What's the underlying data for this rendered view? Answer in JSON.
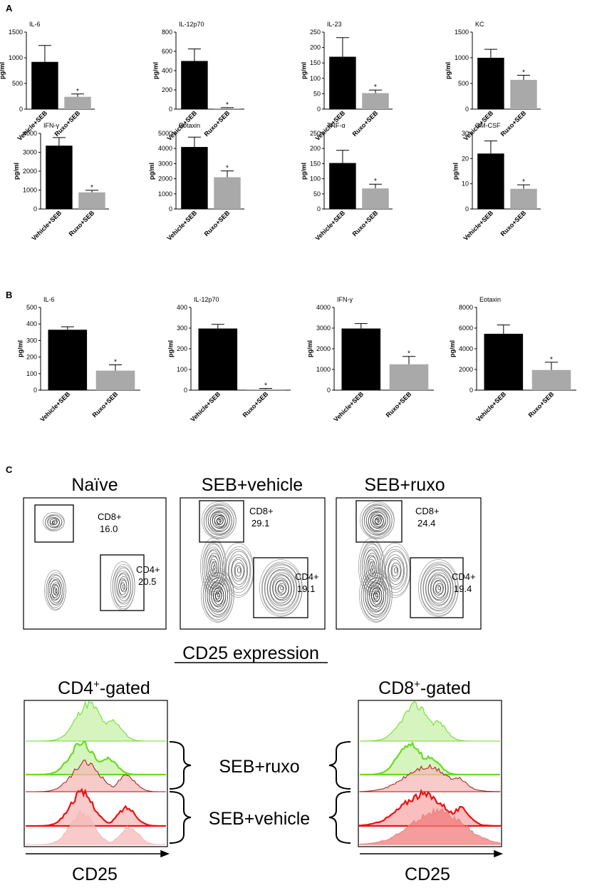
{
  "panel_labels": {
    "a": "A",
    "b": "B",
    "c": "C"
  },
  "y_unit": "pg/ml",
  "chart_data": [
    {
      "type": "bar",
      "panel": "A",
      "title": "IL-6",
      "categories": [
        "Vehicle+SEB",
        "Ruxo+SEB"
      ],
      "values": [
        920,
        240
      ],
      "errors": [
        320,
        55
      ],
      "ylim": [
        0,
        1500
      ],
      "yticks": [
        0,
        500,
        1000,
        1500
      ],
      "ylabel": "pg/ml",
      "significant": [
        false,
        true
      ]
    },
    {
      "type": "bar",
      "panel": "A",
      "title": "IL-12p70",
      "categories": [
        "Vehicle+SEB",
        "Ruxo+SEB"
      ],
      "values": [
        500,
        8
      ],
      "errors": [
        125,
        8
      ],
      "ylim": [
        0,
        800
      ],
      "yticks": [
        0,
        200,
        400,
        600,
        800
      ],
      "ylabel": "pg/ml",
      "significant": [
        false,
        true
      ]
    },
    {
      "type": "bar",
      "panel": "A",
      "title": "IL-23",
      "categories": [
        "Vehicle+SEB",
        "Ruxo+SEB"
      ],
      "values": [
        170,
        52
      ],
      "errors": [
        62,
        10
      ],
      "ylim": [
        0,
        250
      ],
      "yticks": [
        0,
        50,
        100,
        150,
        200,
        250
      ],
      "ylabel": "pg/ml",
      "significant": [
        false,
        true
      ]
    },
    {
      "type": "bar",
      "panel": "A",
      "title": "KC",
      "categories": [
        "Vehicle+SEB",
        "Ruxo+SEB"
      ],
      "values": [
        1000,
        570
      ],
      "errors": [
        165,
        90
      ],
      "ylim": [
        0,
        1500
      ],
      "yticks": [
        0,
        500,
        1000,
        1500
      ],
      "ylabel": "pg/ml",
      "significant": [
        false,
        true
      ]
    },
    {
      "type": "bar",
      "panel": "A",
      "title": "IFN-γ",
      "categories": [
        "Vehicle+SEB",
        "Ruxo+SEB"
      ],
      "values": [
        3350,
        880
      ],
      "errors": [
        430,
        110
      ],
      "ylim": [
        0,
        4000
      ],
      "yticks": [
        0,
        1000,
        2000,
        3000,
        4000
      ],
      "ylabel": "pg/ml",
      "significant": [
        false,
        true
      ]
    },
    {
      "type": "bar",
      "panel": "A",
      "title": "Eotaxin",
      "categories": [
        "Vehicle+SEB",
        "Ruxo+SEB"
      ],
      "values": [
        4100,
        2100
      ],
      "errors": [
        650,
        420
      ],
      "ylim": [
        0,
        5000
      ],
      "yticks": [
        0,
        1000,
        2000,
        3000,
        4000,
        5000
      ],
      "ylabel": "pg/ml",
      "significant": [
        false,
        true
      ]
    },
    {
      "type": "bar",
      "panel": "A",
      "title": "TNF-α",
      "categories": [
        "Vehicle+SEB",
        "Ruxo+SEB"
      ],
      "values": [
        152,
        68
      ],
      "errors": [
        42,
        14
      ],
      "ylim": [
        0,
        250
      ],
      "yticks": [
        0,
        50,
        100,
        150,
        200,
        250
      ],
      "ylabel": "pg/ml",
      "significant": [
        false,
        true
      ]
    },
    {
      "type": "bar",
      "panel": "A",
      "title": "GM-CSF",
      "categories": [
        "Vehicle+SEB",
        "Ruxo+SEB"
      ],
      "values": [
        22,
        8
      ],
      "errors": [
        5,
        1.6
      ],
      "ylim": [
        0,
        30
      ],
      "yticks": [
        0,
        10,
        20,
        30
      ],
      "ylabel": "pg/ml",
      "significant": [
        false,
        true
      ]
    },
    {
      "type": "bar",
      "panel": "B",
      "title": "IL-6",
      "categories": [
        "Vehicle+SEB",
        "Ruxo+SEB"
      ],
      "values": [
        365,
        118
      ],
      "errors": [
        18,
        35
      ],
      "ylim": [
        0,
        500
      ],
      "yticks": [
        0,
        100,
        200,
        300,
        400,
        500
      ],
      "ylabel": "pg/ml",
      "significant": [
        false,
        true
      ]
    },
    {
      "type": "bar",
      "panel": "B",
      "title": "IL-12p70",
      "categories": [
        "Vehicle+SEB",
        "Ruxo+SEB"
      ],
      "values": [
        298,
        4
      ],
      "errors": [
        20,
        4
      ],
      "ylim": [
        0,
        400
      ],
      "yticks": [
        0,
        100,
        200,
        300,
        400
      ],
      "ylabel": "pg/ml",
      "significant": [
        false,
        true
      ]
    },
    {
      "type": "bar",
      "panel": "B",
      "title": "IFN-γ",
      "categories": [
        "Vehicle+SEB",
        "Ruxo+SEB"
      ],
      "values": [
        2980,
        1250
      ],
      "errors": [
        240,
        380
      ],
      "ylim": [
        0,
        4000
      ],
      "yticks": [
        0,
        1000,
        2000,
        3000,
        4000
      ],
      "ylabel": "pg/ml",
      "significant": [
        false,
        true
      ]
    },
    {
      "type": "bar",
      "panel": "B",
      "title": "Eotaxin",
      "categories": [
        "Vehicle+SEB",
        "Ruxo+SEB"
      ],
      "values": [
        5450,
        1950
      ],
      "errors": [
        850,
        750
      ],
      "ylim": [
        0,
        8000
      ],
      "yticks": [
        0,
        2000,
        4000,
        6000,
        8000
      ],
      "ylabel": "pg/ml",
      "significant": [
        false,
        true
      ]
    }
  ],
  "flow": {
    "conditions": [
      {
        "title": "Naïve",
        "cd8_label": "CD8+",
        "cd8_value": "16.0",
        "cd4_label": "CD4+",
        "cd4_value": "20.5"
      },
      {
        "title": "SEB+vehicle",
        "cd8_label": "CD8+",
        "cd8_value": "29.1",
        "cd4_label": "CD4+",
        "cd4_value": "19.1"
      },
      {
        "title": "SEB+ruxo",
        "cd8_label": "CD8+",
        "cd8_value": "24.4",
        "cd4_label": "CD4+",
        "cd4_value": "19.4"
      }
    ],
    "cd25_heading": "CD25 expression",
    "hist_left_title_main": "CD4",
    "hist_left_title_sup": "+",
    "hist_left_title_tail": "-gated",
    "hist_right_title_main": "CD8",
    "hist_right_title_sup": "+",
    "hist_right_title_tail": "-gated",
    "group_ruxo": "SEB+ruxo",
    "group_vehicle": "SEB+vehicle",
    "x_axis_label": "CD25",
    "colors": {
      "ruxo": "#66dd22",
      "ruxo_fill": "#c8f0a8",
      "vehicle": "#ee1111",
      "vehicle_fill": "#f6b8b8",
      "vehicle_dark": "#a01a1a"
    }
  }
}
